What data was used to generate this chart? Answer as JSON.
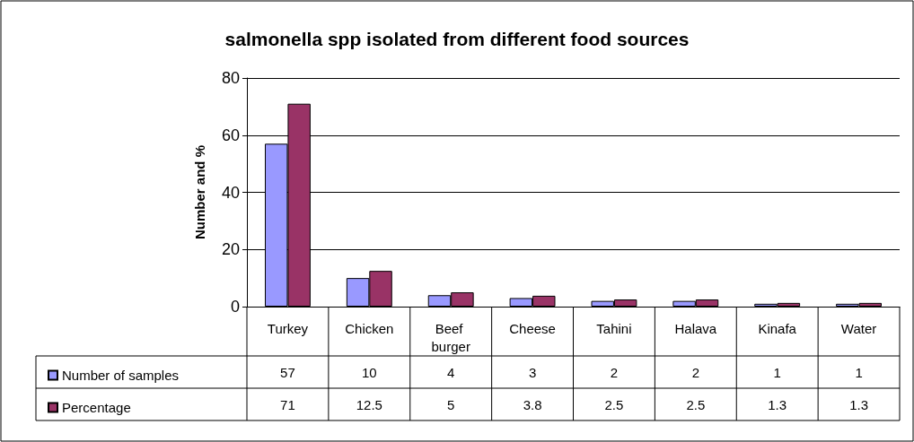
{
  "chart_data": {
    "type": "bar",
    "title": "salmonella spp isolated from different food sources",
    "ylabel": "Number and %",
    "categories": [
      "Turkey",
      "Chicken",
      "Beef burger",
      "Cheese",
      "Tahini",
      "Halava",
      "Kinafa",
      "Water"
    ],
    "series": [
      {
        "name": "Number of samples",
        "color": "#9999ff",
        "values": [
          57,
          10,
          4,
          3,
          2,
          2,
          1,
          1
        ]
      },
      {
        "name": "Percentage",
        "color": "#993366",
        "values": [
          71,
          12.5,
          5,
          3.8,
          2.5,
          2.5,
          1.3,
          1.3
        ]
      }
    ],
    "ylim": [
      0,
      80
    ],
    "yticks": [
      0,
      20,
      40,
      60,
      80
    ],
    "grid": "y",
    "legend": "bottom left",
    "data_labels": true
  }
}
